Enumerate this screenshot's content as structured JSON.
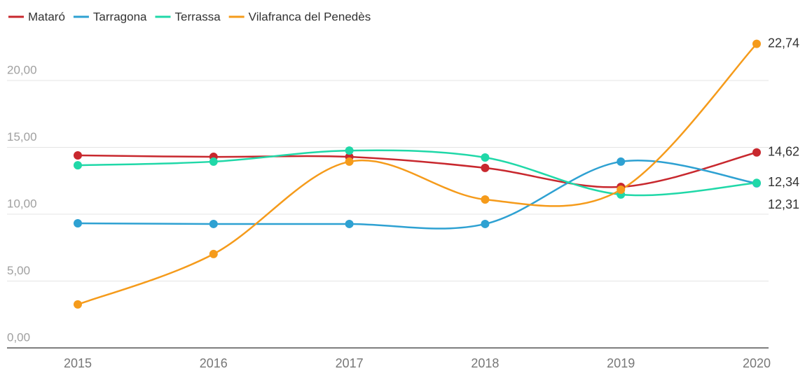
{
  "chart_data": {
    "type": "line",
    "categories": [
      "2015",
      "2016",
      "2017",
      "2018",
      "2019",
      "2020"
    ],
    "series": [
      {
        "name": "Mataró",
        "color": "#c8282e",
        "values": [
          14.4,
          14.29,
          14.29,
          13.46,
          12.04,
          14.62
        ],
        "value_labels": [
          null,
          null,
          null,
          null,
          null,
          "14,62"
        ]
      },
      {
        "name": "Tarragona",
        "color": "#2ea1d2",
        "values": [
          9.32,
          9.27,
          9.27,
          9.27,
          13.93,
          12.31
        ],
        "value_labels": [
          null,
          null,
          null,
          null,
          null,
          "12,31"
        ]
      },
      {
        "name": "Terrassa",
        "color": "#20d8a8",
        "values": [
          13.66,
          13.93,
          14.76,
          14.24,
          11.47,
          12.34
        ],
        "value_labels": [
          null,
          null,
          null,
          null,
          null,
          "12,34"
        ]
      },
      {
        "name": "Vilafranca del Penedès",
        "color": "#f59b1b",
        "values": [
          3.25,
          7.02,
          13.93,
          11.1,
          11.83,
          22.74
        ],
        "value_labels": [
          null,
          null,
          null,
          null,
          null,
          "22,74"
        ]
      }
    ],
    "ylim": [
      0,
      24
    ],
    "yticks": [
      {
        "value": 0,
        "label": "0,00"
      },
      {
        "value": 5,
        "label": "5,00"
      },
      {
        "value": 10,
        "label": "10,00"
      },
      {
        "value": 15,
        "label": "15,00"
      },
      {
        "value": 20,
        "label": "20,00"
      }
    ],
    "grid": true,
    "legend": "top-left"
  }
}
